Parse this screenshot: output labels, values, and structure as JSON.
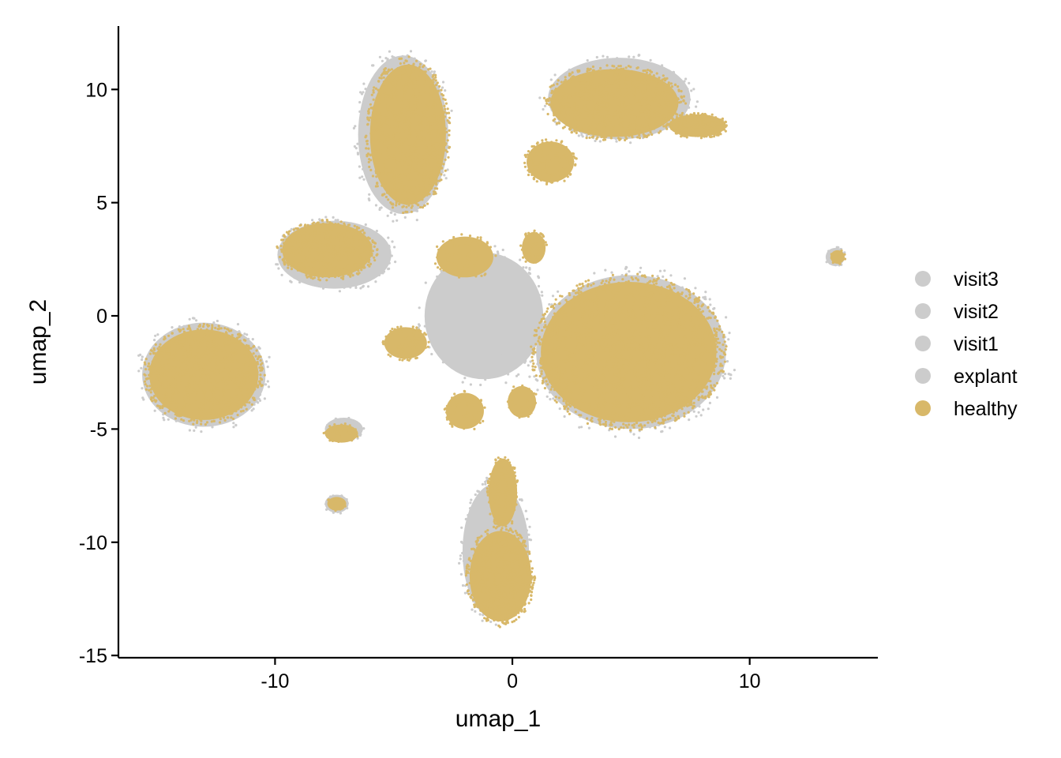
{
  "chart_data": {
    "type": "scatter",
    "title": "",
    "xlabel": "umap_1",
    "ylabel": "umap_2",
    "xlim": [
      -16.6,
      15.4
    ],
    "ylim": [
      -15.1,
      12.8
    ],
    "x_ticks": [
      -10,
      0,
      10
    ],
    "y_ticks": [
      -15,
      -10,
      -5,
      0,
      5,
      10
    ],
    "grid": false,
    "legend_position": "right",
    "legend": [
      {
        "label": "visit3",
        "color": "#cccccc"
      },
      {
        "label": "visit2",
        "color": "#cccccc"
      },
      {
        "label": "visit1",
        "color": "#cccccc"
      },
      {
        "label": "explant",
        "color": "#cccccc"
      },
      {
        "label": "healthy",
        "color": "#d8b869"
      }
    ],
    "series": [
      {
        "name": "visit3",
        "color": "#cccccc",
        "clusters": [
          {
            "cx": -4.6,
            "cy": 8.0,
            "rx": 1.9,
            "ry": 3.5,
            "n": 260
          },
          {
            "cx": 4.5,
            "cy": 9.6,
            "rx": 3.0,
            "ry": 1.8,
            "n": 260
          },
          {
            "cx": -7.5,
            "cy": 2.7,
            "rx": 2.4,
            "ry": 1.5,
            "n": 220
          },
          {
            "cx": -13.0,
            "cy": -2.6,
            "rx": 2.6,
            "ry": 2.3,
            "n": 260
          },
          {
            "cx": 5.0,
            "cy": -1.6,
            "rx": 4.0,
            "ry": 3.4,
            "n": 420
          },
          {
            "cx": -0.7,
            "cy": -10.4,
            "rx": 1.4,
            "ry": 3.0,
            "n": 260
          },
          {
            "cx": -1.2,
            "cy": 0.0,
            "rx": 2.5,
            "ry": 2.8,
            "n": 260
          },
          {
            "cx": -7.1,
            "cy": -5.0,
            "rx": 0.8,
            "ry": 0.5,
            "n": 50
          },
          {
            "cx": -7.4,
            "cy": -8.3,
            "rx": 0.5,
            "ry": 0.4,
            "n": 30
          },
          {
            "cx": 13.6,
            "cy": 2.6,
            "rx": 0.4,
            "ry": 0.4,
            "n": 25
          }
        ]
      },
      {
        "name": "visit2",
        "color": "#cccccc",
        "clusters": []
      },
      {
        "name": "visit1",
        "color": "#cccccc",
        "clusters": []
      },
      {
        "name": "explant",
        "color": "#cccccc",
        "clusters": []
      },
      {
        "name": "healthy",
        "color": "#d8b869",
        "clusters": [
          {
            "cx": -4.4,
            "cy": 8.0,
            "rx": 1.6,
            "ry": 3.1,
            "n": 900
          },
          {
            "cx": 4.3,
            "cy": 9.4,
            "rx": 2.7,
            "ry": 1.5,
            "n": 800
          },
          {
            "cx": 7.8,
            "cy": 8.4,
            "rx": 1.2,
            "ry": 0.5,
            "n": 200
          },
          {
            "cx": 1.6,
            "cy": 6.8,
            "rx": 1.0,
            "ry": 0.9,
            "n": 150
          },
          {
            "cx": -7.8,
            "cy": 2.9,
            "rx": 1.9,
            "ry": 1.2,
            "n": 500
          },
          {
            "cx": -13.0,
            "cy": -2.6,
            "rx": 2.3,
            "ry": 2.0,
            "n": 900
          },
          {
            "cx": 4.9,
            "cy": -1.6,
            "rx": 3.7,
            "ry": 3.1,
            "n": 1800
          },
          {
            "cx": -0.5,
            "cy": -11.5,
            "rx": 1.3,
            "ry": 2.0,
            "n": 700
          },
          {
            "cx": -0.4,
            "cy": -7.8,
            "rx": 0.6,
            "ry": 1.5,
            "n": 160
          },
          {
            "cx": -4.5,
            "cy": -1.2,
            "rx": 0.9,
            "ry": 0.7,
            "n": 90
          },
          {
            "cx": -2.0,
            "cy": 2.6,
            "rx": 1.2,
            "ry": 0.9,
            "n": 80
          },
          {
            "cx": 0.9,
            "cy": 3.0,
            "rx": 0.5,
            "ry": 0.7,
            "n": 60
          },
          {
            "cx": -2.0,
            "cy": -4.2,
            "rx": 0.8,
            "ry": 0.8,
            "n": 60
          },
          {
            "cx": 0.4,
            "cy": -3.8,
            "rx": 0.6,
            "ry": 0.7,
            "n": 40
          },
          {
            "cx": -7.2,
            "cy": -5.2,
            "rx": 0.7,
            "ry": 0.4,
            "n": 60
          },
          {
            "cx": -7.4,
            "cy": -8.3,
            "rx": 0.4,
            "ry": 0.3,
            "n": 25
          },
          {
            "cx": 13.7,
            "cy": 2.6,
            "rx": 0.3,
            "ry": 0.3,
            "n": 20
          }
        ]
      }
    ]
  }
}
